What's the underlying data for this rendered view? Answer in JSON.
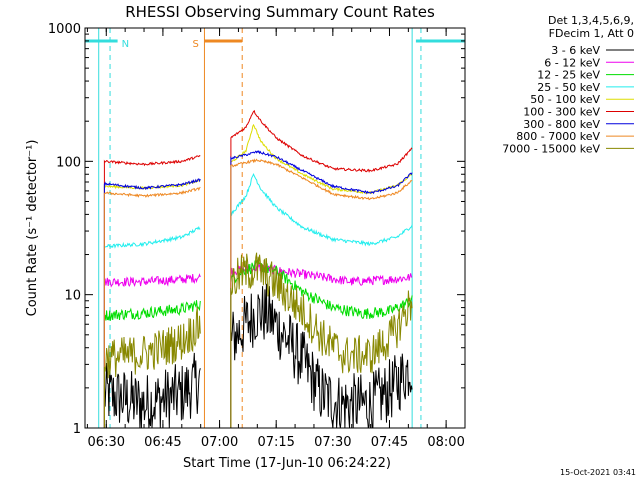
{
  "chart_data": {
    "type": "line",
    "title": "RHESSI Observing Summary Count Rates",
    "xlabel": "Start Time (17-Jun-10 06:24:22)",
    "ylabel": "Count Rate (s⁻¹ detector⁻¹)",
    "yscale": "log",
    "ylim": [
      1,
      1000
    ],
    "x_range": [
      "06:24:22",
      "08:05:00"
    ],
    "x_ticks": [
      "06:30",
      "06:45",
      "07:00",
      "07:15",
      "07:30",
      "07:45",
      "08:00"
    ],
    "y_ticks": [
      "1",
      "10",
      "100",
      "1000"
    ],
    "grid": false,
    "legend_position": "right",
    "legend_header": [
      "Det 1,3,4,5,6,9,",
      "FDecim 1, Att 0"
    ],
    "timestamp": "15-Oct-2021 03:41",
    "flags": [
      {
        "label": "N",
        "color": "#33dddd",
        "start": "06:24:22",
        "end": "06:33:00"
      },
      {
        "label": "N",
        "color": "#33dddd",
        "start": "07:52:00",
        "end": "08:05:00"
      },
      {
        "label": "S",
        "color": "#ee8822",
        "start": "06:56:00",
        "end": "07:06:00"
      }
    ],
    "event_lines": [
      {
        "time": "06:31:00",
        "color": "#33dddd",
        "style": "dashed"
      },
      {
        "time": "07:53:20",
        "color": "#33dddd",
        "style": "dashed"
      },
      {
        "time": "07:06:00",
        "color": "#ee8822",
        "style": "dashed"
      },
      {
        "time": "06:28:00",
        "color": "#33dddd",
        "style": "solid"
      },
      {
        "time": "07:51:00",
        "color": "#33dddd",
        "style": "solid"
      },
      {
        "time": "06:56:00",
        "color": "#ee8822",
        "style": "solid"
      }
    ],
    "series": [
      {
        "name": "3 - 6 keV",
        "color": "#000000",
        "noise": 0.55,
        "segments": [
          {
            "x": [
              "06:29:30",
              "06:40:00",
              "06:50:00",
              "06:55:00"
            ],
            "y": [
              1.8,
              1.5,
              1.8,
              2.3
            ]
          },
          {
            "x": [
              "07:03:00",
              "07:07:00",
              "07:10:00",
              "07:13:00",
              "07:17:00",
              "07:22:00",
              "07:27:00",
              "07:32:00",
              "07:40:00",
              "07:46:00",
              "07:51:00"
            ],
            "y": [
              4.5,
              6.0,
              7.5,
              7.0,
              5.0,
              3.2,
              1.8,
              1.5,
              1.5,
              2.0,
              3.0
            ]
          }
        ]
      },
      {
        "name": "6 - 12 keV",
        "color": "#ee00ee",
        "noise": 0.08,
        "segments": [
          {
            "x": [
              "06:29:30",
              "06:40:00",
              "06:50:00",
              "06:55:00"
            ],
            "y": [
              12.5,
              12.5,
              13.0,
              13.5
            ]
          },
          {
            "x": [
              "07:03:00",
              "07:10:00",
              "07:20:00",
              "07:35:00",
              "07:45:00",
              "07:51:00"
            ],
            "y": [
              15.0,
              16.0,
              14.5,
              12.5,
              13.0,
              13.5
            ]
          }
        ]
      },
      {
        "name": "12 - 25 keV",
        "color": "#00dd00",
        "noise": 0.1,
        "segments": [
          {
            "x": [
              "06:29:30",
              "06:40:00",
              "06:50:00",
              "06:55:00"
            ],
            "y": [
              7.0,
              7.3,
              7.8,
              8.5
            ]
          },
          {
            "x": [
              "07:03:00",
              "07:07:00",
              "07:10:00",
              "07:15:00",
              "07:22:00",
              "07:30:00",
              "07:38:00",
              "07:45:00",
              "07:51:00"
            ],
            "y": [
              13.0,
              15.5,
              16.5,
              15.0,
              10.5,
              8.0,
              7.2,
              7.5,
              9.0
            ]
          }
        ]
      },
      {
        "name": "25 - 50 keV",
        "color": "#22eeee",
        "noise": 0.03,
        "segments": [
          {
            "x": [
              "06:29:30",
              "06:40:00",
              "06:50:00",
              "06:55:00"
            ],
            "y": [
              23,
              24,
              27,
              32
            ]
          },
          {
            "x": [
              "07:03:00",
              "07:07:00",
              "07:09:00",
              "07:11:00",
              "07:15:00",
              "07:22:00",
              "07:30:00",
              "07:40:00",
              "07:47:00",
              "07:51:00"
            ],
            "y": [
              40,
              55,
              80,
              62,
              45,
              32,
              26,
              24,
              27,
              33
            ]
          }
        ]
      },
      {
        "name": "50 - 100 keV",
        "color": "#dddd00",
        "noise": 0.02,
        "segments": [
          {
            "x": [
              "06:29:30",
              "06:40:00",
              "06:50:00",
              "06:55:00"
            ],
            "y": [
              65,
              63,
              66,
              72
            ]
          },
          {
            "x": [
              "07:03:00",
              "07:07:00",
              "07:09:00",
              "07:11:00",
              "07:15:00",
              "07:22:00",
              "07:30:00",
              "07:40:00",
              "07:47:00",
              "07:51:00"
            ],
            "y": [
              98,
              120,
              190,
              140,
              105,
              80,
              62,
              58,
              66,
              80
            ]
          }
        ]
      },
      {
        "name": "100 - 300 keV",
        "color": "#dd0000",
        "noise": 0.02,
        "segments": [
          {
            "x": [
              "06:29:30",
              "06:40:00",
              "06:50:00",
              "06:55:00"
            ],
            "y": [
              100,
              95,
              100,
              110
            ]
          },
          {
            "x": [
              "07:03:00",
              "07:07:00",
              "07:09:00",
              "07:11:00",
              "07:15:00",
              "07:22:00",
              "07:30:00",
              "07:40:00",
              "07:47:00",
              "07:51:00"
            ],
            "y": [
              150,
              180,
              240,
              200,
              150,
              110,
              88,
              85,
              95,
              125
            ]
          }
        ]
      },
      {
        "name": "300 - 800 keV",
        "color": "#0000dd",
        "noise": 0.02,
        "segments": [
          {
            "x": [
              "06:29:30",
              "06:40:00",
              "06:50:00",
              "06:55:00"
            ],
            "y": [
              68,
              63,
              67,
              73
            ]
          },
          {
            "x": [
              "07:03:00",
              "07:07:00",
              "07:10:00",
              "07:15:00",
              "07:22:00",
              "07:30:00",
              "07:40:00",
              "07:47:00",
              "07:51:00"
            ],
            "y": [
              105,
              112,
              118,
              108,
              85,
              65,
              58,
              65,
              82
            ]
          }
        ]
      },
      {
        "name": "800 - 7000 keV",
        "color": "#ee8822",
        "noise": 0.02,
        "segments": [
          {
            "x": [
              "06:29:30",
              "06:40:00",
              "06:50:00",
              "06:55:00"
            ],
            "y": [
              58,
              55,
              58,
              63
            ]
          },
          {
            "x": [
              "07:03:00",
              "07:07:00",
              "07:10:00",
              "07:15:00",
              "07:22:00",
              "07:30:00",
              "07:40:00",
              "07:47:00",
              "07:51:00"
            ],
            "y": [
              92,
              98,
              102,
              95,
              75,
              57,
              52,
              58,
              72
            ]
          }
        ]
      },
      {
        "name": "7000 - 15000 keV",
        "color": "#888800",
        "noise": 0.35,
        "segments": [
          {
            "x": [
              "06:29:30",
              "06:40:00",
              "06:50:00",
              "06:55:00"
            ],
            "y": [
              3.3,
              3.6,
              4.5,
              6.0
            ]
          },
          {
            "x": [
              "07:03:00",
              "07:06:00",
              "07:10:00",
              "07:15:00",
              "07:22:00",
              "07:28:00",
              "07:33:00",
              "07:40:00",
              "07:46:00",
              "07:51:00"
            ],
            "y": [
              12.0,
              14.5,
              15.5,
              12.0,
              7.5,
              4.5,
              3.5,
              3.5,
              5.0,
              9.0
            ]
          }
        ]
      }
    ]
  }
}
